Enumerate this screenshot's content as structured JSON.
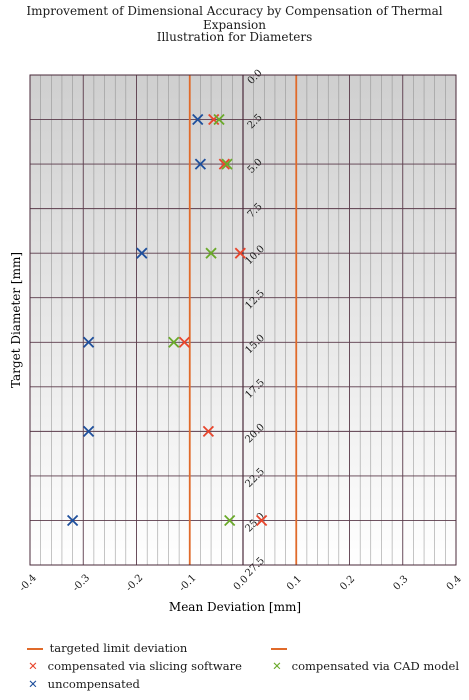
{
  "chart_data": {
    "type": "scatter",
    "title": "Improvement of Dimensional Accuracy by Compensation of Thermal Expansion",
    "subtitle": "Illustration for Diameters",
    "xlabel": "Mean Deviation [mm]",
    "ylabel": "Target Diameter [mm]",
    "xlim": [
      -0.4,
      0.4
    ],
    "ylim": [
      0.0,
      27.5
    ],
    "x_ticks": [
      "-0.4",
      "-0.3",
      "-0.2",
      "-0.1",
      "0.0",
      "0.1",
      "0.2",
      "0.3",
      "0.4"
    ],
    "y_ticks": [
      "0.0",
      "2.5",
      "5.0",
      "7.5",
      "10.0",
      "12.5",
      "15.0",
      "17.5",
      "20.0",
      "22.5",
      "25.0",
      "27.5"
    ],
    "grid": true,
    "limit_lines": {
      "name": "targeted limit deviation",
      "x": [
        -0.1,
        0.1
      ],
      "color": "#e06a2a"
    },
    "series": [
      {
        "name": "compensated via slicing software",
        "color": "#e8452c",
        "points": [
          [
            -0.055,
            2.5
          ],
          [
            -0.035,
            5.0
          ],
          [
            -0.005,
            10.0
          ],
          [
            -0.11,
            15.0
          ],
          [
            -0.065,
            20.0
          ],
          [
            0.035,
            25.0
          ]
        ]
      },
      {
        "name": "compensated via CAD model",
        "color": "#6aaa2a",
        "points": [
          [
            -0.045,
            2.5
          ],
          [
            -0.03,
            5.0
          ],
          [
            -0.06,
            10.0
          ],
          [
            -0.13,
            15.0
          ],
          [
            -0.025,
            25.0
          ]
        ]
      },
      {
        "name": "uncompensated",
        "color": "#1e4f9c",
        "points": [
          [
            -0.085,
            2.5
          ],
          [
            -0.08,
            5.0
          ],
          [
            -0.19,
            10.0
          ],
          [
            -0.29,
            15.0
          ],
          [
            -0.29,
            20.0
          ],
          [
            -0.32,
            25.0
          ]
        ]
      }
    ]
  }
}
